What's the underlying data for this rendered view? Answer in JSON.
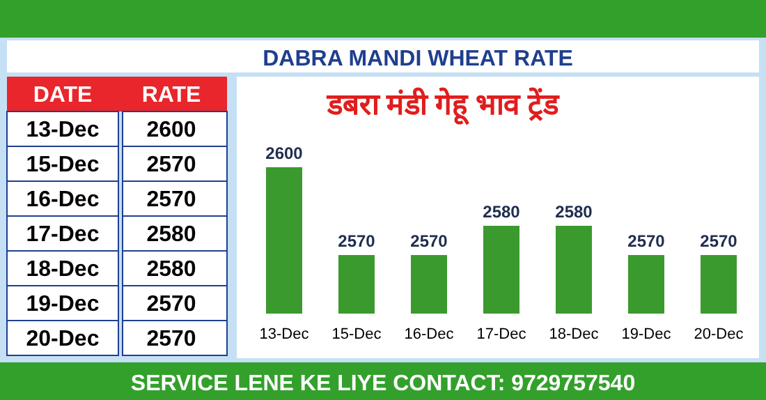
{
  "chart_data": [
    {
      "type": "other",
      "annotations": [
        "DATE",
        "RATE",
        "13-Dec",
        "2600",
        "15-Dec",
        "2570",
        "16-Dec",
        "2570",
        "17-Dec",
        "2580",
        "18-Dec",
        "2580",
        "19-Dec",
        "2570",
        "20-Dec",
        "2570"
      ]
    },
    {
      "type": "bar",
      "title": "डबरा मंडी गेहू भाव  ट्रेंड",
      "subtitle": "DABRA MANDI WHEAT RATE",
      "categories": [
        "13-Dec",
        "15-Dec",
        "16-Dec",
        "17-Dec",
        "18-Dec",
        "19-Dec",
        "20-Dec"
      ],
      "values": [
        2600,
        2570,
        2570,
        2580,
        2580,
        2570,
        2570
      ],
      "color": "#3a9a2e",
      "ylim": [
        2550,
        2600
      ],
      "tick_labels": "x",
      "data_labels": true,
      "annotations": [
        "SERVICE LENE KE LIYE CONTACT: 9729757540"
      ]
    }
  ]
}
